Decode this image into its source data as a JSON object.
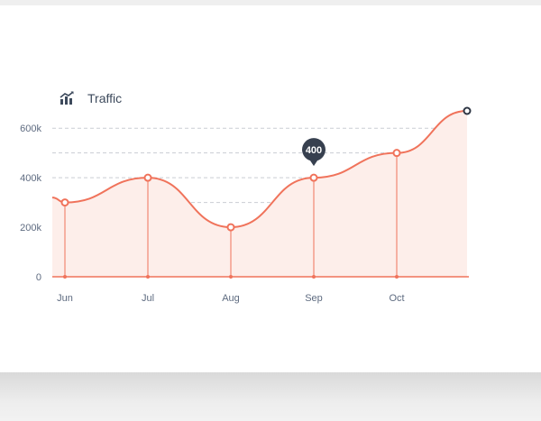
{
  "header": {
    "title": "Traffic",
    "icon": "bar-chart-trend-icon"
  },
  "colors": {
    "line": "#f0735b",
    "fill": "#fdeeea",
    "grid": "#c9cdd3",
    "axis": "#f0735b",
    "tooltip_bg": "#37404f",
    "label": "#5e6b80",
    "endpoint": "#2e3644"
  },
  "chart_data": {
    "type": "area",
    "title": "Traffic",
    "categories": [
      "Jun",
      "Jul",
      "Aug",
      "Sep",
      "Oct"
    ],
    "points": [
      {
        "label": "Jun",
        "value": 300000
      },
      {
        "label": "Jul",
        "value": 400000
      },
      {
        "label": "Aug",
        "value": 200000
      },
      {
        "label": "Sep",
        "value": 400000
      },
      {
        "label": "Oct",
        "value": 500000
      }
    ],
    "start_value": 320000,
    "end_value": 670000,
    "ylim": [
      0,
      670000
    ],
    "yticks": [
      {
        "value": 0,
        "label": "0"
      },
      {
        "value": 200000,
        "label": "200k"
      },
      {
        "value": 400000,
        "label": "400k"
      },
      {
        "value": 600000,
        "label": "600k"
      }
    ],
    "grid": true,
    "highlight": {
      "category": "Sep",
      "label": "400"
    }
  }
}
